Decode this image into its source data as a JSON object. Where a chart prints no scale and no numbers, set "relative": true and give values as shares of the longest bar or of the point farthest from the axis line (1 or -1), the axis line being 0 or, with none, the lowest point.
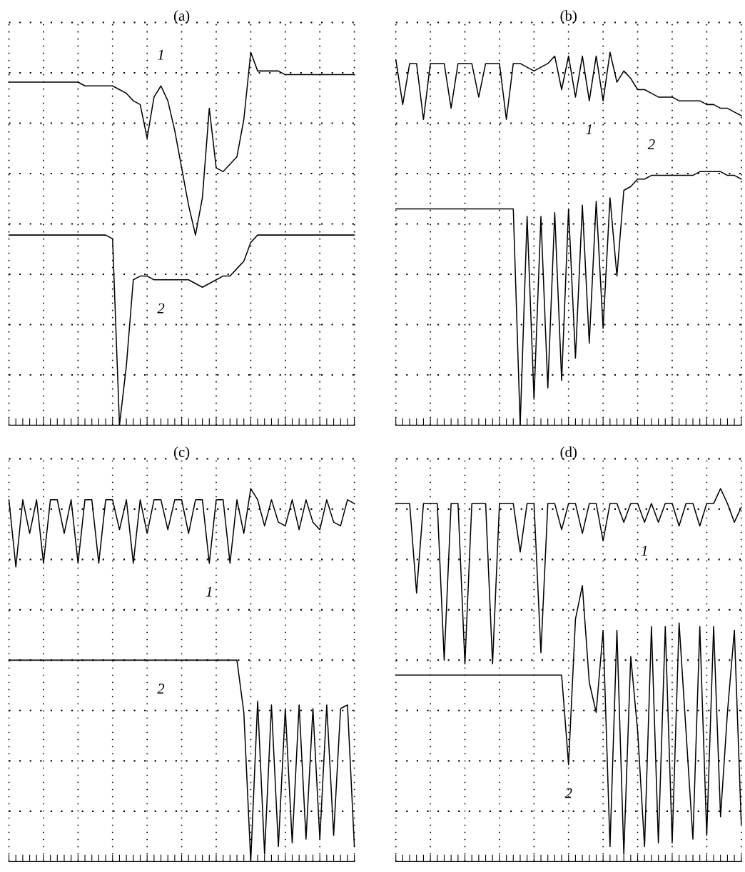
{
  "chart_data": [
    {
      "type": "line",
      "title": "(a)",
      "relative": true,
      "grid": true,
      "categories": [
        null,
        null,
        null,
        null,
        null,
        null,
        null,
        null,
        null,
        null,
        null,
        null,
        null,
        null,
        null,
        null,
        null,
        null,
        null,
        null,
        null,
        null,
        null,
        null,
        null,
        null,
        null,
        null,
        null,
        null,
        null,
        null,
        null,
        null,
        null,
        null,
        null,
        null,
        null,
        null,
        null,
        null,
        null,
        null,
        null,
        null,
        null,
        null,
        null,
        null,
        null
      ],
      "series": [
        {
          "name": "1",
          "color": "#000000",
          "values": [
            0.92,
            0.92,
            0.92,
            0.92,
            0.92,
            0.92,
            0.92,
            0.92,
            0.92,
            0.92,
            0.92,
            0.91,
            0.91,
            0.91,
            0.91,
            0.91,
            0.9,
            0.89,
            0.87,
            0.86,
            0.77,
            0.88,
            0.91,
            0.87,
            0.79,
            0.69,
            0.59,
            0.51,
            0.61,
            0.85,
            0.69,
            0.68,
            0.7,
            0.72,
            0.82,
            1.0,
            0.95,
            0.95,
            0.95,
            0.95,
            0.94,
            0.94,
            0.94,
            0.94,
            0.94,
            0.94,
            0.94,
            0.94,
            0.94,
            0.94,
            0.94
          ]
        },
        {
          "name": "2",
          "color": "#000000",
          "values": [
            0.51,
            0.51,
            0.51,
            0.51,
            0.51,
            0.51,
            0.51,
            0.51,
            0.51,
            0.51,
            0.51,
            0.51,
            0.51,
            0.51,
            0.51,
            0.5,
            0,
            0.16,
            0.39,
            0.4,
            0.4,
            0.39,
            0.39,
            0.39,
            0.39,
            0.39,
            0.39,
            0.38,
            0.37,
            0.38,
            0.39,
            0.4,
            0.4,
            0.42,
            0.44,
            0.49,
            0.51,
            0.51,
            0.51,
            0.51,
            0.51,
            0.51,
            0.51,
            0.51,
            0.51,
            0.51,
            0.51,
            0.51,
            0.51,
            0.51,
            0.51
          ]
        }
      ]
    },
    {
      "type": "line",
      "title": "(b)",
      "relative": true,
      "grid": true,
      "categories": [
        null,
        null,
        null,
        null,
        null,
        null,
        null,
        null,
        null,
        null,
        null,
        null,
        null,
        null,
        null,
        null,
        null,
        null,
        null,
        null,
        null,
        null,
        null,
        null,
        null,
        null,
        null,
        null,
        null,
        null,
        null,
        null,
        null,
        null,
        null,
        null,
        null,
        null,
        null,
        null,
        null,
        null,
        null,
        null,
        null,
        null,
        null,
        null,
        null,
        null,
        null
      ],
      "series": [
        {
          "name": "1",
          "color": "#000000",
          "values": [
            0.98,
            0.86,
            0.97,
            0.97,
            0.82,
            0.97,
            0.97,
            0.97,
            0.85,
            0.97,
            0.97,
            0.97,
            0.88,
            0.97,
            0.97,
            0.97,
            0.82,
            0.97,
            0.97,
            0.96,
            0.95,
            0.96,
            0.97,
            0.99,
            0.9,
            0.99,
            0.88,
            0.99,
            0.87,
            0.99,
            0.87,
            1.0,
            0.92,
            0.95,
            0.93,
            0.9,
            0.9,
            0.89,
            0.88,
            0.88,
            0.88,
            0.87,
            0.87,
            0.87,
            0.87,
            0.86,
            0.86,
            0.85,
            0.85,
            0.84,
            0.83
          ]
        },
        {
          "name": "2",
          "color": "#000000",
          "values": [
            0.58,
            0.58,
            0.58,
            0.58,
            0.58,
            0.58,
            0.58,
            0.58,
            0.58,
            0.58,
            0.58,
            0.58,
            0.58,
            0.58,
            0.58,
            0.58,
            0.58,
            0.58,
            0,
            0.56,
            0.07,
            0.56,
            0.1,
            0.57,
            0.12,
            0.58,
            0.18,
            0.59,
            0.22,
            0.6,
            0.26,
            0.61,
            0.4,
            0.63,
            0.64,
            0.66,
            0.66,
            0.67,
            0.67,
            0.67,
            0.67,
            0.67,
            0.67,
            0.67,
            0.68,
            0.68,
            0.68,
            0.68,
            0.67,
            0.67,
            0.66
          ]
        }
      ]
    },
    {
      "type": "line",
      "title": "(c)",
      "relative": true,
      "grid": true,
      "categories": [
        null,
        null,
        null,
        null,
        null,
        null,
        null,
        null,
        null,
        null,
        null,
        null,
        null,
        null,
        null,
        null,
        null,
        null,
        null,
        null,
        null,
        null,
        null,
        null,
        null,
        null,
        null,
        null,
        null,
        null,
        null,
        null,
        null,
        null,
        null,
        null,
        null,
        null,
        null,
        null,
        null,
        null,
        null,
        null,
        null,
        null,
        null,
        null,
        null,
        null,
        null
      ],
      "series": [
        {
          "name": "1",
          "color": "#000000",
          "values": [
            0.97,
            0.79,
            0.97,
            0.88,
            0.97,
            0.8,
            0.97,
            0.97,
            0.88,
            0.97,
            0.8,
            0.97,
            0.97,
            0.8,
            0.97,
            0.97,
            0.89,
            0.97,
            0.8,
            0.97,
            0.88,
            0.97,
            0.97,
            0.89,
            0.97,
            0.97,
            0.88,
            0.97,
            0.97,
            0.8,
            0.97,
            0.97,
            0.8,
            0.97,
            0.88,
            1.0,
            0.97,
            0.9,
            0.97,
            0.91,
            0.9,
            0.97,
            0.89,
            0.97,
            0.91,
            0.89,
            0.97,
            0.91,
            0.9,
            0.97,
            0.96
          ]
        },
        {
          "name": "2",
          "color": "#000000",
          "values": [
            0.54,
            0.54,
            0.54,
            0.54,
            0.54,
            0.54,
            0.54,
            0.54,
            0.54,
            0.54,
            0.54,
            0.54,
            0.54,
            0.54,
            0.54,
            0.54,
            0.54,
            0.54,
            0.54,
            0.54,
            0.54,
            0.54,
            0.54,
            0.54,
            0.54,
            0.54,
            0.54,
            0.54,
            0.54,
            0.54,
            0.54,
            0.54,
            0.54,
            0.54,
            0.4,
            0,
            0.43,
            0.02,
            0.42,
            0.04,
            0.41,
            0.05,
            0.42,
            0.06,
            0.41,
            0.06,
            0.42,
            0.07,
            0.41,
            0.42,
            0.04
          ]
        }
      ]
    },
    {
      "type": "line",
      "title": "(d)",
      "relative": true,
      "grid": true,
      "categories": [
        null,
        null,
        null,
        null,
        null,
        null,
        null,
        null,
        null,
        null,
        null,
        null,
        null,
        null,
        null,
        null,
        null,
        null,
        null,
        null,
        null,
        null,
        null,
        null,
        null,
        null,
        null,
        null,
        null,
        null,
        null,
        null,
        null,
        null,
        null,
        null,
        null,
        null,
        null,
        null,
        null,
        null,
        null,
        null,
        null,
        null,
        null,
        null,
        null,
        null,
        null
      ],
      "series": [
        {
          "name": "1",
          "color": "#000000",
          "values": [
            0.96,
            0.96,
            0.96,
            0.72,
            0.96,
            0.96,
            0.96,
            0.54,
            0.96,
            0.96,
            0.53,
            0.96,
            0.96,
            0.96,
            0.53,
            0.96,
            0.96,
            0.96,
            0.83,
            0.96,
            0.96,
            0.56,
            0.96,
            0.96,
            0.89,
            0.96,
            0.96,
            0.88,
            0.96,
            0.96,
            0.86,
            0.96,
            0.96,
            0.91,
            0.96,
            0.96,
            0.91,
            0.96,
            0.91,
            0.96,
            0.96,
            0.9,
            0.96,
            0.96,
            0.9,
            0.96,
            0.96,
            1.0,
            0.96,
            0.91,
            0.95
          ]
        },
        {
          "name": "2",
          "color": "#000000",
          "values": [
            0.5,
            0.5,
            0.5,
            0.5,
            0.5,
            0.5,
            0.5,
            0.5,
            0.5,
            0.5,
            0.5,
            0.5,
            0.5,
            0.5,
            0.5,
            0.5,
            0.5,
            0.5,
            0.5,
            0.5,
            0.5,
            0.5,
            0.5,
            0.5,
            0.5,
            0.26,
            0.65,
            0.74,
            0.48,
            0.4,
            0.62,
            0.04,
            0.62,
            0.02,
            0.55,
            0.35,
            0.04,
            0.63,
            0.05,
            0.63,
            0.05,
            0.64,
            0.35,
            0.06,
            0.63,
            0.07,
            0.63,
            0.12,
            0.4,
            0.62,
            0.1
          ]
        }
      ]
    }
  ]
}
